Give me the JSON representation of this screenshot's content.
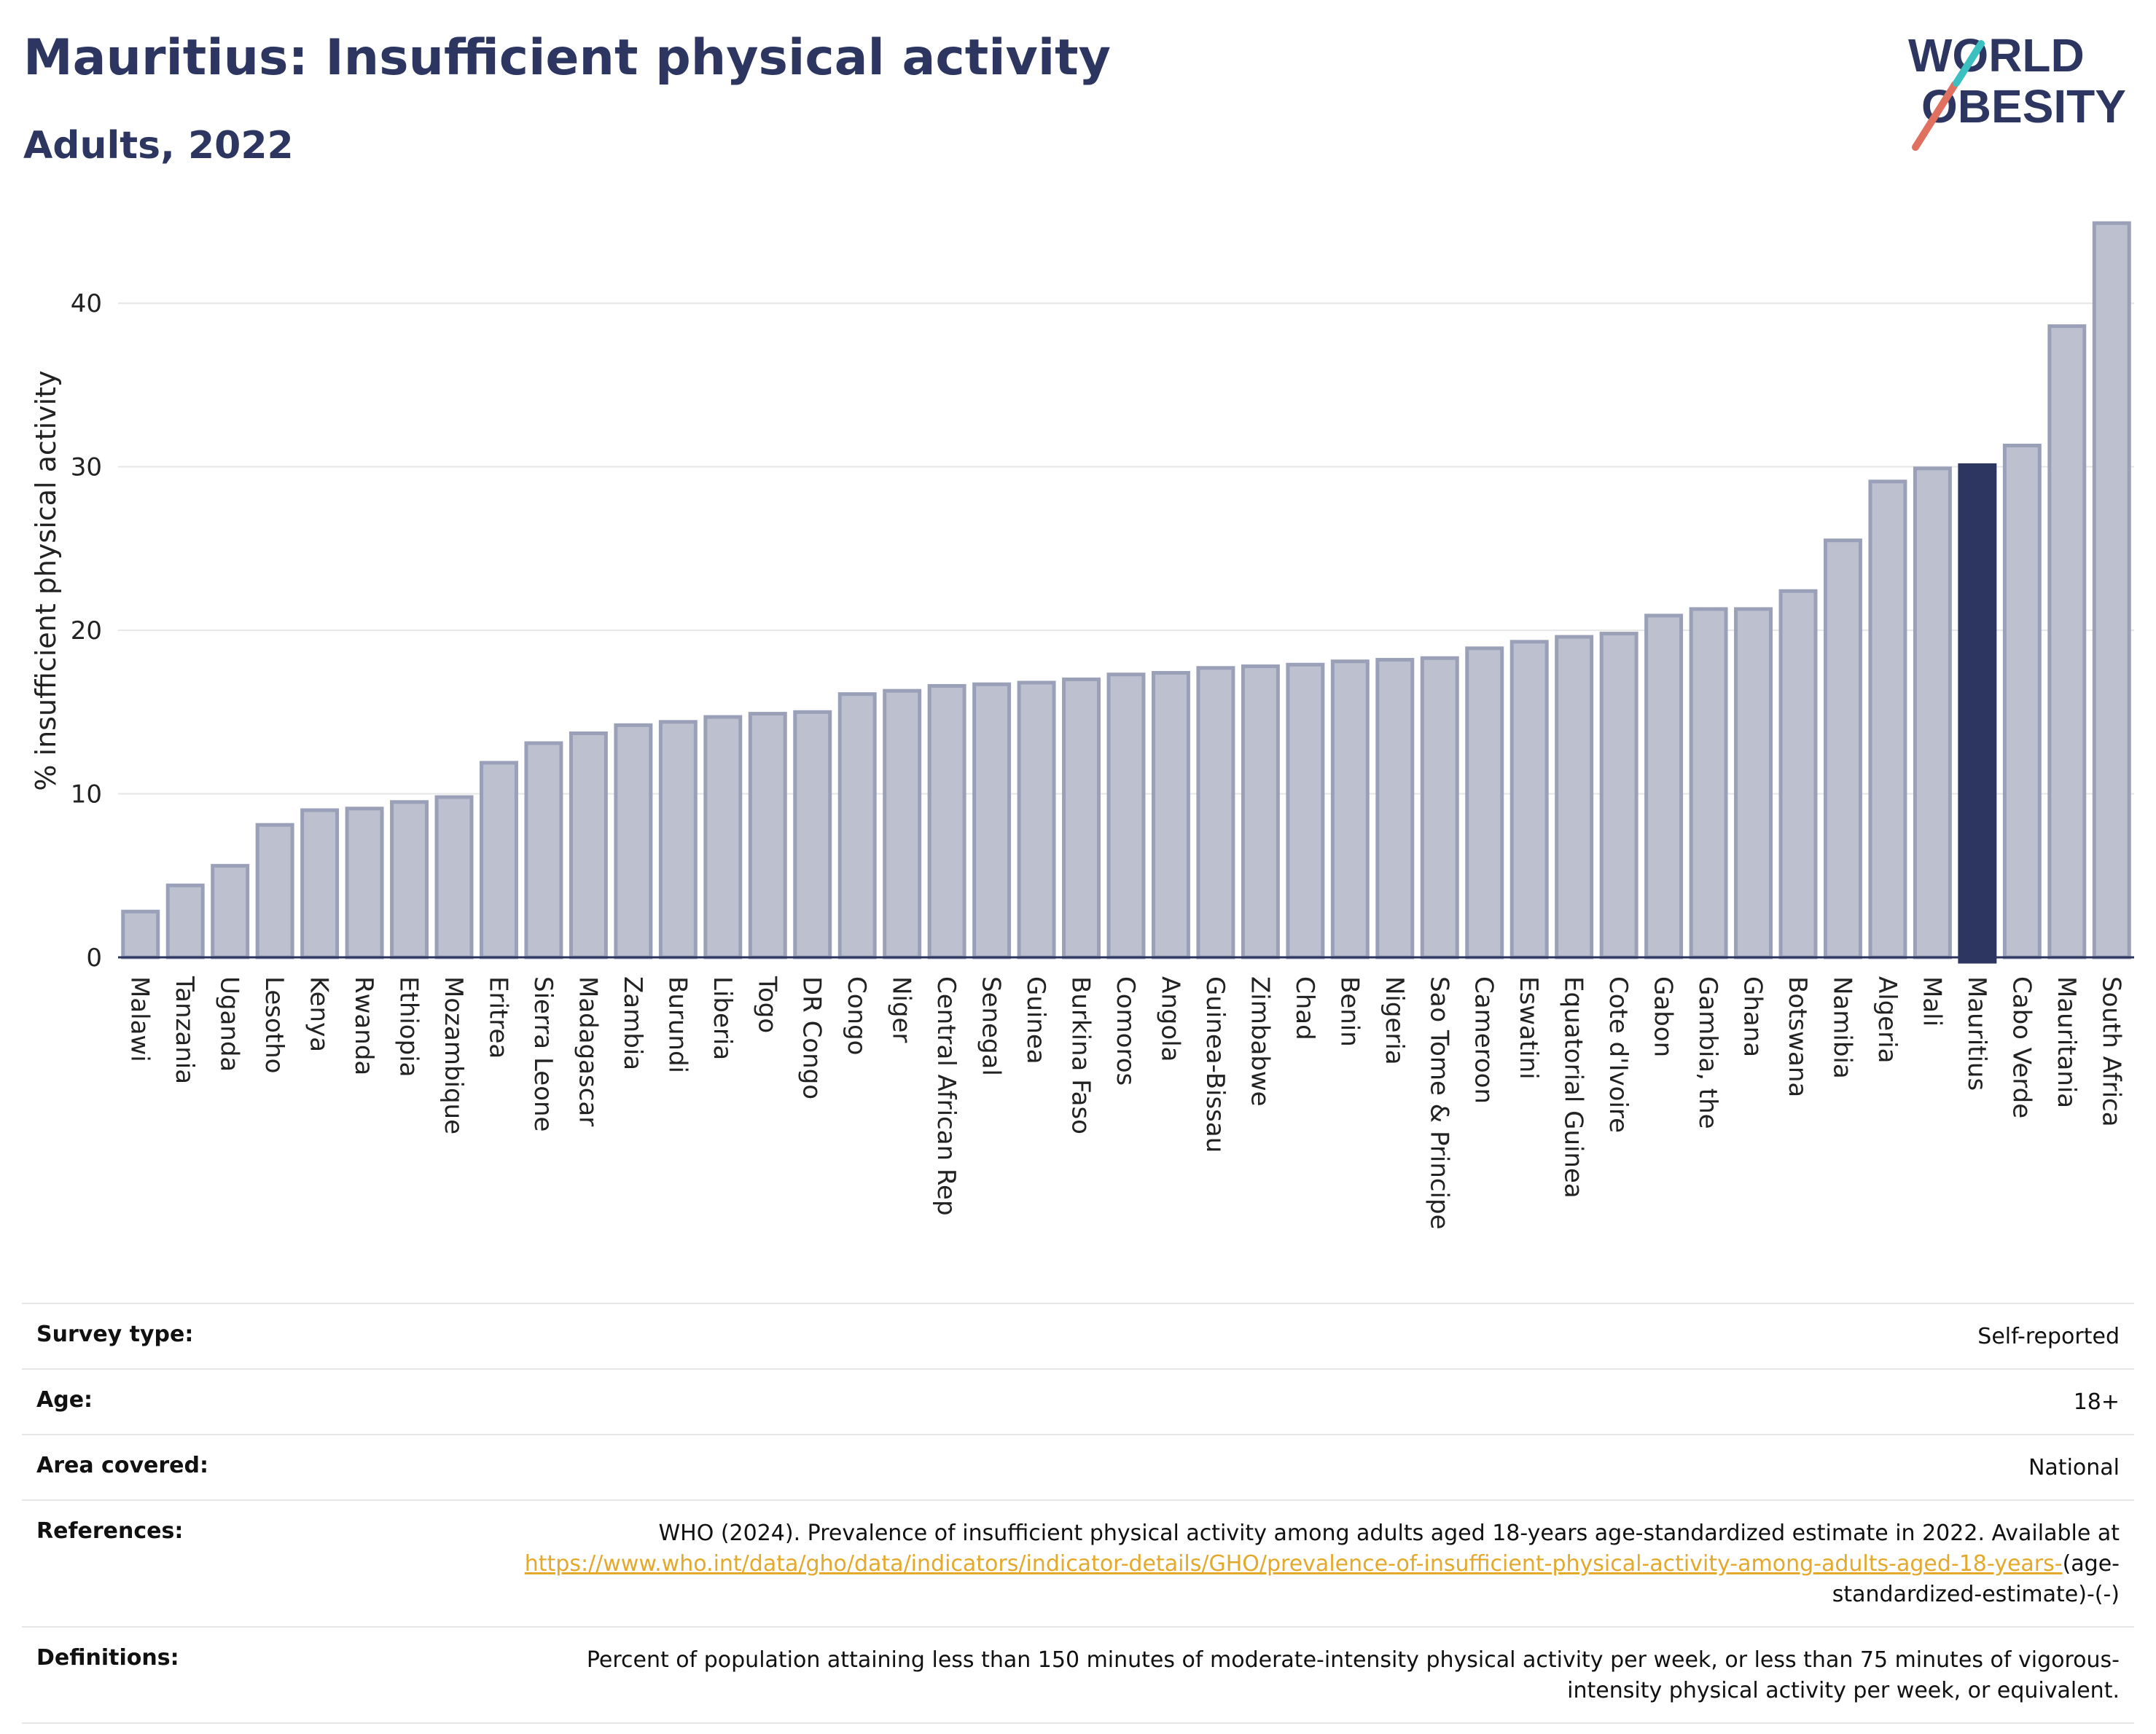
{
  "header": {
    "title": "Mauritius: Insufficient physical activity",
    "subtitle": "Adults, 2022",
    "logo_line1": "WORLD",
    "logo_line2": "OBESITY"
  },
  "chart_data": {
    "type": "bar",
    "ylabel": "% insufficient physical activity",
    "ylim": [
      0,
      45
    ],
    "yticks": [
      0,
      10,
      20,
      30,
      40
    ],
    "grid": true,
    "highlight": "Mauritius",
    "colors": {
      "bar": "#bcc0cf",
      "bar_edge": "#9aa0b8",
      "highlight": "#2c3660",
      "grid": "#e6e6e6",
      "axis": "#2c3660"
    },
    "categories": [
      "Malawi",
      "Tanzania",
      "Uganda",
      "Lesotho",
      "Kenya",
      "Rwanda",
      "Ethiopia",
      "Mozambique",
      "Eritrea",
      "Sierra Leone",
      "Madagascar",
      "Zambia",
      "Burundi",
      "Liberia",
      "Togo",
      "DR Congo",
      "Congo",
      "Niger",
      "Central African Rep",
      "Senegal",
      "Guinea",
      "Burkina Faso",
      "Comoros",
      "Angola",
      "Guinea-Bissau",
      "Zimbabwe",
      "Chad",
      "Benin",
      "Nigeria",
      "Sao Tome & Principe",
      "Cameroon",
      "Eswatini",
      "Equatorial Guinea",
      "Cote d'Ivoire",
      "Gabon",
      "Gambia, the",
      "Ghana",
      "Botswana",
      "Namibia",
      "Algeria",
      "Mali",
      "Mauritius",
      "Cabo Verde",
      "Mauritania",
      "South Africa"
    ],
    "values": [
      2.8,
      4.4,
      5.6,
      8.1,
      9.0,
      9.1,
      9.5,
      9.8,
      11.9,
      13.1,
      13.7,
      14.2,
      14.4,
      14.7,
      14.9,
      15.0,
      16.1,
      16.3,
      16.6,
      16.7,
      16.8,
      17.0,
      17.3,
      17.4,
      17.7,
      17.8,
      17.9,
      18.1,
      18.2,
      18.3,
      18.9,
      19.3,
      19.6,
      19.8,
      20.9,
      21.3,
      21.3,
      22.4,
      25.5,
      29.1,
      29.9,
      30.1,
      31.3,
      38.6,
      44.9
    ]
  },
  "info": {
    "survey_type_label": "Survey type:",
    "survey_type_value": "Self-reported",
    "age_label": "Age:",
    "age_value": "18+",
    "area_label": "Area covered:",
    "area_value": "National",
    "references_label": "References:",
    "references_text": "WHO (2024). Prevalence of insufficient physical activity among adults aged 18-years age-standardized estimate in 2022. Available at",
    "references_link": "https://www.who.int/data/gho/data/indicators/indicator-details/GHO/prevalence-of-insufficient-physical-activity-among-adults-aged-18-years-",
    "references_tail": "(age-standardized-estimate)-(-)",
    "definitions_label": "Definitions:",
    "definitions_value": "Percent of population attaining less than 150 minutes of moderate-intensity physical activity per week, or less than 75 minutes of vigorous-intensity physical activity per week, or equivalent."
  }
}
